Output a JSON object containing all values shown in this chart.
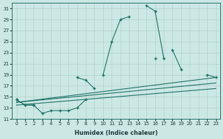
{
  "xlabel": "Humidex (Indice chaleur)",
  "bg_color": "#cce8e4",
  "grid_color": "#b0d0cc",
  "line_color": "#1a6e64",
  "ylim": [
    11,
    32
  ],
  "xlim": [
    -0.5,
    23.5
  ],
  "yticks": [
    11,
    13,
    15,
    17,
    19,
    21,
    23,
    25,
    27,
    29,
    31
  ],
  "xticks": [
    0,
    1,
    2,
    3,
    4,
    5,
    6,
    7,
    8,
    9,
    10,
    11,
    12,
    13,
    14,
    15,
    16,
    17,
    18,
    19,
    20,
    21,
    22,
    23
  ],
  "line_upper": [
    null,
    null,
    null,
    null,
    null,
    null,
    null,
    null,
    null,
    null,
    19.0,
    25.0,
    29.0,
    29.5,
    null,
    31.5,
    30.5,
    22.0,
    null,
    null,
    null,
    null,
    null,
    null
  ],
  "line_mid": [
    null,
    null,
    null,
    null,
    null,
    null,
    null,
    null,
    null,
    null,
    null,
    null,
    null,
    null,
    null,
    null,
    22.0,
    null,
    23.5,
    20.0,
    null,
    null,
    19.0,
    18.5
  ],
  "line_lower1": [
    14.5,
    13.5,
    13.5,
    null,
    null,
    null,
    null,
    18.5,
    18.0,
    16.5,
    null,
    null,
    null,
    null,
    null,
    null,
    null,
    null,
    null,
    null,
    null,
    null,
    null,
    null
  ],
  "line_lower2": [
    14.5,
    13.5,
    13.5,
    12.0,
    12.5,
    12.5,
    12.5,
    13.0,
    14.5,
    null,
    null,
    null,
    null,
    null,
    null,
    null,
    null,
    null,
    null,
    null,
    null,
    null,
    null,
    null
  ],
  "line_straight1": [
    [
      0,
      14.0
    ],
    [
      23,
      18.5
    ]
  ],
  "line_straight2": [
    [
      0,
      14.0
    ],
    [
      23,
      17.5
    ]
  ],
  "line_straight3": [
    [
      0,
      13.5
    ],
    [
      23,
      16.5
    ]
  ]
}
